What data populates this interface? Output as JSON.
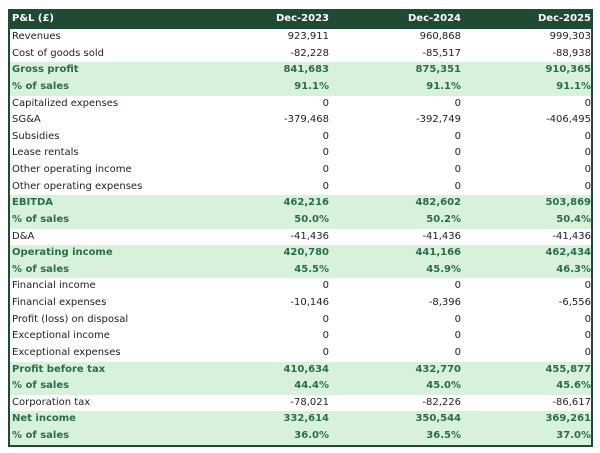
{
  "colors": {
    "header_bg": "#1f4a33",
    "highlight_bg": "#d8f1dc",
    "highlight_text": "#2b6e45"
  },
  "header": {
    "label": "P&L (£)",
    "columns": [
      "Dec-2023",
      "Dec-2024",
      "Dec-2025"
    ]
  },
  "rows": [
    {
      "label": "Revenues",
      "values": [
        "923,911",
        "960,868",
        "999,303"
      ],
      "highlight": false
    },
    {
      "label": "Cost of goods sold",
      "values": [
        "-82,228",
        "-85,517",
        "-88,938"
      ],
      "highlight": false
    },
    {
      "label": "Gross profit",
      "values": [
        "841,683",
        "875,351",
        "910,365"
      ],
      "highlight": true
    },
    {
      "label": "% of sales",
      "values": [
        "91.1%",
        "91.1%",
        "91.1%"
      ],
      "highlight": true
    },
    {
      "label": "Capitalized expenses",
      "values": [
        "0",
        "0",
        "0"
      ],
      "highlight": false
    },
    {
      "label": "SG&A",
      "values": [
        "-379,468",
        "-392,749",
        "-406,495"
      ],
      "highlight": false
    },
    {
      "label": "Subsidies",
      "values": [
        "0",
        "0",
        "0"
      ],
      "highlight": false
    },
    {
      "label": "Lease rentals",
      "values": [
        "0",
        "0",
        "0"
      ],
      "highlight": false
    },
    {
      "label": "Other operating income",
      "values": [
        "0",
        "0",
        "0"
      ],
      "highlight": false
    },
    {
      "label": "Other operating expenses",
      "values": [
        "0",
        "0",
        "0"
      ],
      "highlight": false
    },
    {
      "label": "EBITDA",
      "values": [
        "462,216",
        "482,602",
        "503,869"
      ],
      "highlight": true
    },
    {
      "label": "% of sales",
      "values": [
        "50.0%",
        "50.2%",
        "50.4%"
      ],
      "highlight": true
    },
    {
      "label": "D&A",
      "values": [
        "-41,436",
        "-41,436",
        "-41,436"
      ],
      "highlight": false
    },
    {
      "label": "Operating income",
      "values": [
        "420,780",
        "441,166",
        "462,434"
      ],
      "highlight": true
    },
    {
      "label": "% of sales",
      "values": [
        "45.5%",
        "45.9%",
        "46.3%"
      ],
      "highlight": true
    },
    {
      "label": "Financial income",
      "values": [
        "0",
        "0",
        "0"
      ],
      "highlight": false
    },
    {
      "label": "Financial expenses",
      "values": [
        "-10,146",
        "-8,396",
        "-6,556"
      ],
      "highlight": false
    },
    {
      "label": "Profit (loss) on disposal",
      "values": [
        "0",
        "0",
        "0"
      ],
      "highlight": false
    },
    {
      "label": "Exceptional income",
      "values": [
        "0",
        "0",
        "0"
      ],
      "highlight": false
    },
    {
      "label": "Exceptional expenses",
      "values": [
        "0",
        "0",
        "0"
      ],
      "highlight": false
    },
    {
      "label": "Profit before tax",
      "values": [
        "410,634",
        "432,770",
        "455,877"
      ],
      "highlight": true
    },
    {
      "label": "% of sales",
      "values": [
        "44.4%",
        "45.0%",
        "45.6%"
      ],
      "highlight": true
    },
    {
      "label": "Corporation tax",
      "values": [
        "-78,021",
        "-82,226",
        "-86,617"
      ],
      "highlight": false
    },
    {
      "label": "Net income",
      "values": [
        "332,614",
        "350,544",
        "369,261"
      ],
      "highlight": true
    },
    {
      "label": "% of sales",
      "values": [
        "36.0%",
        "36.5%",
        "37.0%"
      ],
      "highlight": true
    }
  ]
}
